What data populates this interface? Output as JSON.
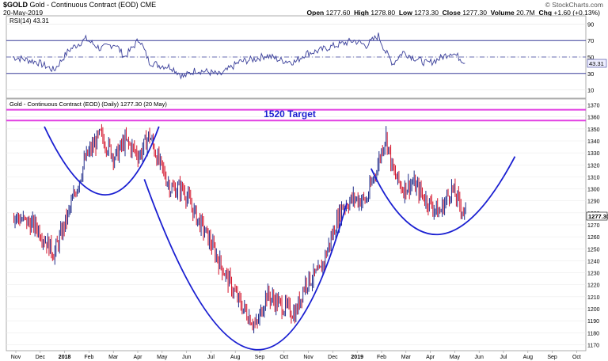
{
  "header": {
    "symbol": "$GOLD",
    "description": "Gold - Continuous Contract (EOD) CME",
    "date": "20-May-2019",
    "watermark": "© StockCharts.com",
    "ohlc_line": {
      "open_label": "Open",
      "open": "1277.60",
      "high_label": "High",
      "high": "1278.80",
      "low_label": "Low",
      "low": "1273.30",
      "close_label": "Close",
      "close": "1277.30",
      "volume_label": "Volume",
      "volume": "20.7M",
      "chg_label": "Chg",
      "chg": "+1.60 (+0.13%)"
    }
  },
  "rsi_panel": {
    "legend": "RSI(14) 43.31",
    "current": "43.31",
    "ylim": [
      0,
      100
    ],
    "ticks": [
      "90",
      "70",
      "50",
      "30",
      "10"
    ],
    "upper_level": 70,
    "lower_level": 30,
    "mid_level": 50,
    "line_color": "#3a3f9a"
  },
  "price_panel": {
    "legend": "Gold - Continuous Contract (EOD) (Daily) 1277.30 (20 May)",
    "target_label": "1520 Target",
    "current_price_label": "1277.30",
    "colors": {
      "up": "#1f2b8a",
      "down": "#d4142c",
      "curve": "#1a1fd1",
      "target": "#e23ee2"
    }
  },
  "chart_data": {
    "type": "candlestick",
    "title": "$GOLD Gold - Continuous Contract (EOD) CME",
    "x_tick_labels": [
      "Nov",
      "Dec",
      "2018",
      "Feb",
      "Mar",
      "Apr",
      "May",
      "Jun",
      "Jul",
      "Aug",
      "Sep",
      "Oct",
      "Nov",
      "Dec",
      "2019",
      "Feb",
      "Mar",
      "Apr",
      "May",
      "Jun",
      "Jul",
      "Aug",
      "Sep",
      "Oct"
    ],
    "ylim": [
      1165,
      1375
    ],
    "y_ticks": [
      1370,
      1360,
      1350,
      1340,
      1330,
      1320,
      1310,
      1300,
      1290,
      1280,
      1270,
      1260,
      1250,
      1240,
      1230,
      1220,
      1210,
      1200,
      1190,
      1180,
      1170
    ],
    "target_band": [
      1357,
      1366
    ],
    "price_path_month_index": [
      0,
      1,
      1.7,
      2.3,
      3,
      3.6,
      4.2,
      4.6,
      5.2,
      5.6,
      6,
      6.5,
      7,
      7.5,
      8,
      8.5,
      9.3,
      10,
      10.4,
      11,
      11.6,
      12,
      12.6,
      13,
      13.5,
      14,
      14.5,
      15,
      15.3,
      15.6,
      16,
      16.4,
      17,
      17.5,
      18,
      18.6
    ],
    "price_path_close": [
      1278,
      1268,
      1246,
      1280,
      1326,
      1345,
      1326,
      1340,
      1328,
      1345,
      1322,
      1300,
      1300,
      1278,
      1260,
      1238,
      1205,
      1185,
      1212,
      1203,
      1196,
      1222,
      1230,
      1255,
      1285,
      1292,
      1290,
      1322,
      1345,
      1314,
      1300,
      1305,
      1290,
      1280,
      1300,
      1277
    ],
    "rsi_values": [
      50,
      44,
      34,
      58,
      72,
      60,
      66,
      50,
      72,
      44,
      40,
      38,
      26,
      34,
      32,
      28,
      44,
      48,
      52,
      46,
      44,
      54,
      58,
      62,
      66,
      70,
      64,
      76,
      56,
      42,
      56,
      50,
      42,
      48,
      56,
      43
    ],
    "overlays": [
      {
        "name": "left shoulder arc",
        "points": [
          [
            1.3,
            1352
          ],
          [
            3.8,
            1295
          ],
          [
            6.0,
            1352
          ]
        ]
      },
      {
        "name": "cup",
        "points": [
          [
            5.4,
            1308
          ],
          [
            9.9,
            1166
          ],
          [
            13.7,
            1288
          ]
        ]
      },
      {
        "name": "right handle arc",
        "points": [
          [
            14.7,
            1317
          ],
          [
            17.5,
            1262
          ],
          [
            20.6,
            1327
          ]
        ]
      }
    ]
  }
}
